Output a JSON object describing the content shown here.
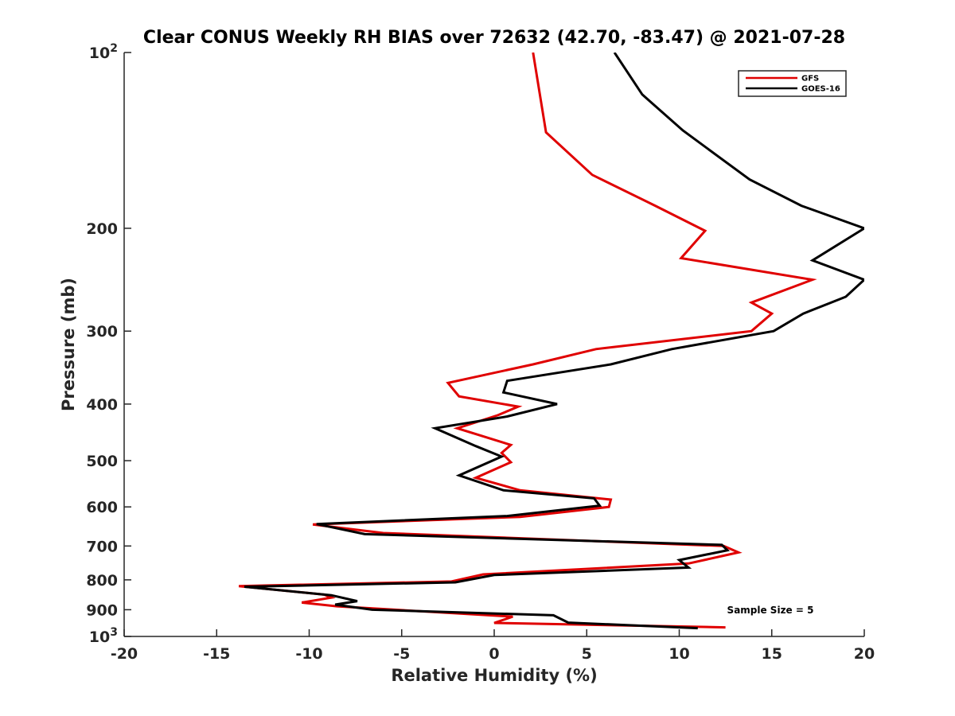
{
  "chart_data": {
    "type": "line",
    "title": "Clear CONUS Weekly RH BIAS over 72632 (42.70, -83.47) @ 2021-07-28",
    "xlabel": "Relative Humidity (%)",
    "ylabel": "Pressure (mb)",
    "xlim": [
      -20,
      20
    ],
    "ylim": [
      100,
      1000
    ],
    "y_scale": "log",
    "y_reversed": true,
    "grid": false,
    "legend_position": "top-right",
    "x_ticks": [
      "-20",
      "-15",
      "-10",
      "-5",
      "0",
      "5",
      "10",
      "15",
      "20"
    ],
    "y_ticks": [
      {
        "value": 100,
        "base": "10",
        "exp": "2"
      },
      {
        "value": 200,
        "label": "200"
      },
      {
        "value": 300,
        "label": "300"
      },
      {
        "value": 400,
        "label": "400"
      },
      {
        "value": 500,
        "label": "500"
      },
      {
        "value": 600,
        "label": "600"
      },
      {
        "value": 700,
        "label": "700"
      },
      {
        "value": 800,
        "label": "800"
      },
      {
        "value": 900,
        "label": "900"
      },
      {
        "value": 1000,
        "base": "10",
        "exp": "3"
      }
    ],
    "series": [
      {
        "name": "GFS",
        "color": "#e00000",
        "points": [
          [
            2.1,
            100
          ],
          [
            2.8,
            137
          ],
          [
            5.3,
            162
          ],
          [
            8.7,
            183
          ],
          [
            11.4,
            202
          ],
          [
            10.1,
            225
          ],
          [
            17.2,
            245
          ],
          [
            13.9,
            268
          ],
          [
            15.0,
            280
          ],
          [
            13.9,
            300
          ],
          [
            5.5,
            322
          ],
          [
            2.1,
            342
          ],
          [
            -2.5,
            368
          ],
          [
            -1.9,
            388
          ],
          [
            1.3,
            404
          ],
          [
            0.2,
            418
          ],
          [
            -2.0,
            440
          ],
          [
            0.9,
            470
          ],
          [
            0.4,
            485
          ],
          [
            0.9,
            503
          ],
          [
            -1.0,
            535
          ],
          [
            1.4,
            562
          ],
          [
            6.3,
            583
          ],
          [
            6.2,
            600
          ],
          [
            1.4,
            624
          ],
          [
            -9.8,
            643
          ],
          [
            -6.0,
            665
          ],
          [
            12.4,
            700
          ],
          [
            13.2,
            718
          ],
          [
            10.5,
            750
          ],
          [
            -0.6,
            783
          ],
          [
            -2.3,
            805
          ],
          [
            -13.8,
            820
          ],
          [
            -9.2,
            848
          ],
          [
            -8.8,
            858
          ],
          [
            -10.4,
            875
          ],
          [
            -8.5,
            888
          ],
          [
            1.0,
            925
          ],
          [
            0.0,
            948
          ],
          [
            12.5,
            965
          ]
        ]
      },
      {
        "name": "GOES-16",
        "color": "#000000",
        "points": [
          [
            6.5,
            100
          ],
          [
            8.0,
            118
          ],
          [
            10.2,
            136
          ],
          [
            13.8,
            165
          ],
          [
            16.6,
            183
          ],
          [
            20.0,
            200
          ],
          [
            17.2,
            227
          ],
          [
            20.0,
            245
          ],
          [
            19.0,
            262
          ],
          [
            16.7,
            280
          ],
          [
            15.1,
            300
          ],
          [
            9.6,
            322
          ],
          [
            6.3,
            342
          ],
          [
            0.7,
            365
          ],
          [
            0.5,
            382
          ],
          [
            3.4,
            400
          ],
          [
            0.7,
            420
          ],
          [
            -3.2,
            440
          ],
          [
            -1.0,
            472
          ],
          [
            0.4,
            492
          ],
          [
            -1.9,
            530
          ],
          [
            0.5,
            562
          ],
          [
            5.4,
            580
          ],
          [
            5.7,
            597
          ],
          [
            0.7,
            622
          ],
          [
            -9.6,
            642
          ],
          [
            -7.0,
            668
          ],
          [
            12.3,
            697
          ],
          [
            12.6,
            712
          ],
          [
            10.0,
            740
          ],
          [
            10.5,
            762
          ],
          [
            0.0,
            785
          ],
          [
            -2.1,
            808
          ],
          [
            -13.5,
            822
          ],
          [
            -8.8,
            850
          ],
          [
            -7.4,
            870
          ],
          [
            -8.6,
            882
          ],
          [
            -6.6,
            900
          ],
          [
            3.2,
            920
          ],
          [
            4.0,
            947
          ],
          [
            11.0,
            968
          ]
        ]
      }
    ],
    "annotation": "Sample Size = 5"
  }
}
